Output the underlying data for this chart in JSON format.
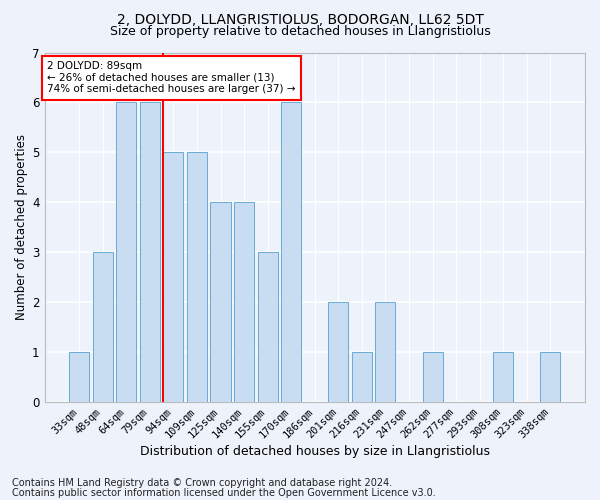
{
  "title1": "2, DOLYDD, LLANGRISTIOLUS, BODORGAN, LL62 5DT",
  "title2": "Size of property relative to detached houses in Llangristiolus",
  "xlabel": "Distribution of detached houses by size in Llangristiolus",
  "ylabel": "Number of detached properties",
  "footnote1": "Contains HM Land Registry data © Crown copyright and database right 2024.",
  "footnote2": "Contains public sector information licensed under the Open Government Licence v3.0.",
  "categories": [
    "33sqm",
    "48sqm",
    "64sqm",
    "79sqm",
    "94sqm",
    "109sqm",
    "125sqm",
    "140sqm",
    "155sqm",
    "170sqm",
    "186sqm",
    "201sqm",
    "216sqm",
    "231sqm",
    "247sqm",
    "262sqm",
    "277sqm",
    "293sqm",
    "308sqm",
    "323sqm",
    "338sqm"
  ],
  "values": [
    1,
    3,
    6,
    6,
    5,
    5,
    4,
    4,
    3,
    6,
    0,
    2,
    1,
    2,
    0,
    1,
    0,
    0,
    1,
    0,
    1
  ],
  "bar_color": "#c9ddf2",
  "bar_edge_color": "#6aaad4",
  "annotation_line1": "2 DOLYDD: 89sqm",
  "annotation_line2": "← 26% of detached houses are smaller (13)",
  "annotation_line3": "74% of semi-detached houses are larger (37) →",
  "red_line_index": 4,
  "ylim": [
    0,
    7
  ],
  "yticks": [
    0,
    1,
    2,
    3,
    4,
    5,
    6,
    7
  ],
  "background_color": "#edf2fb",
  "grid_color": "#ffffff",
  "title1_fontsize": 10,
  "title2_fontsize": 9,
  "xlabel_fontsize": 9,
  "ylabel_fontsize": 8.5,
  "footnote_fontsize": 7,
  "tick_fontsize": 7.5,
  "annotation_fontsize": 7.5
}
